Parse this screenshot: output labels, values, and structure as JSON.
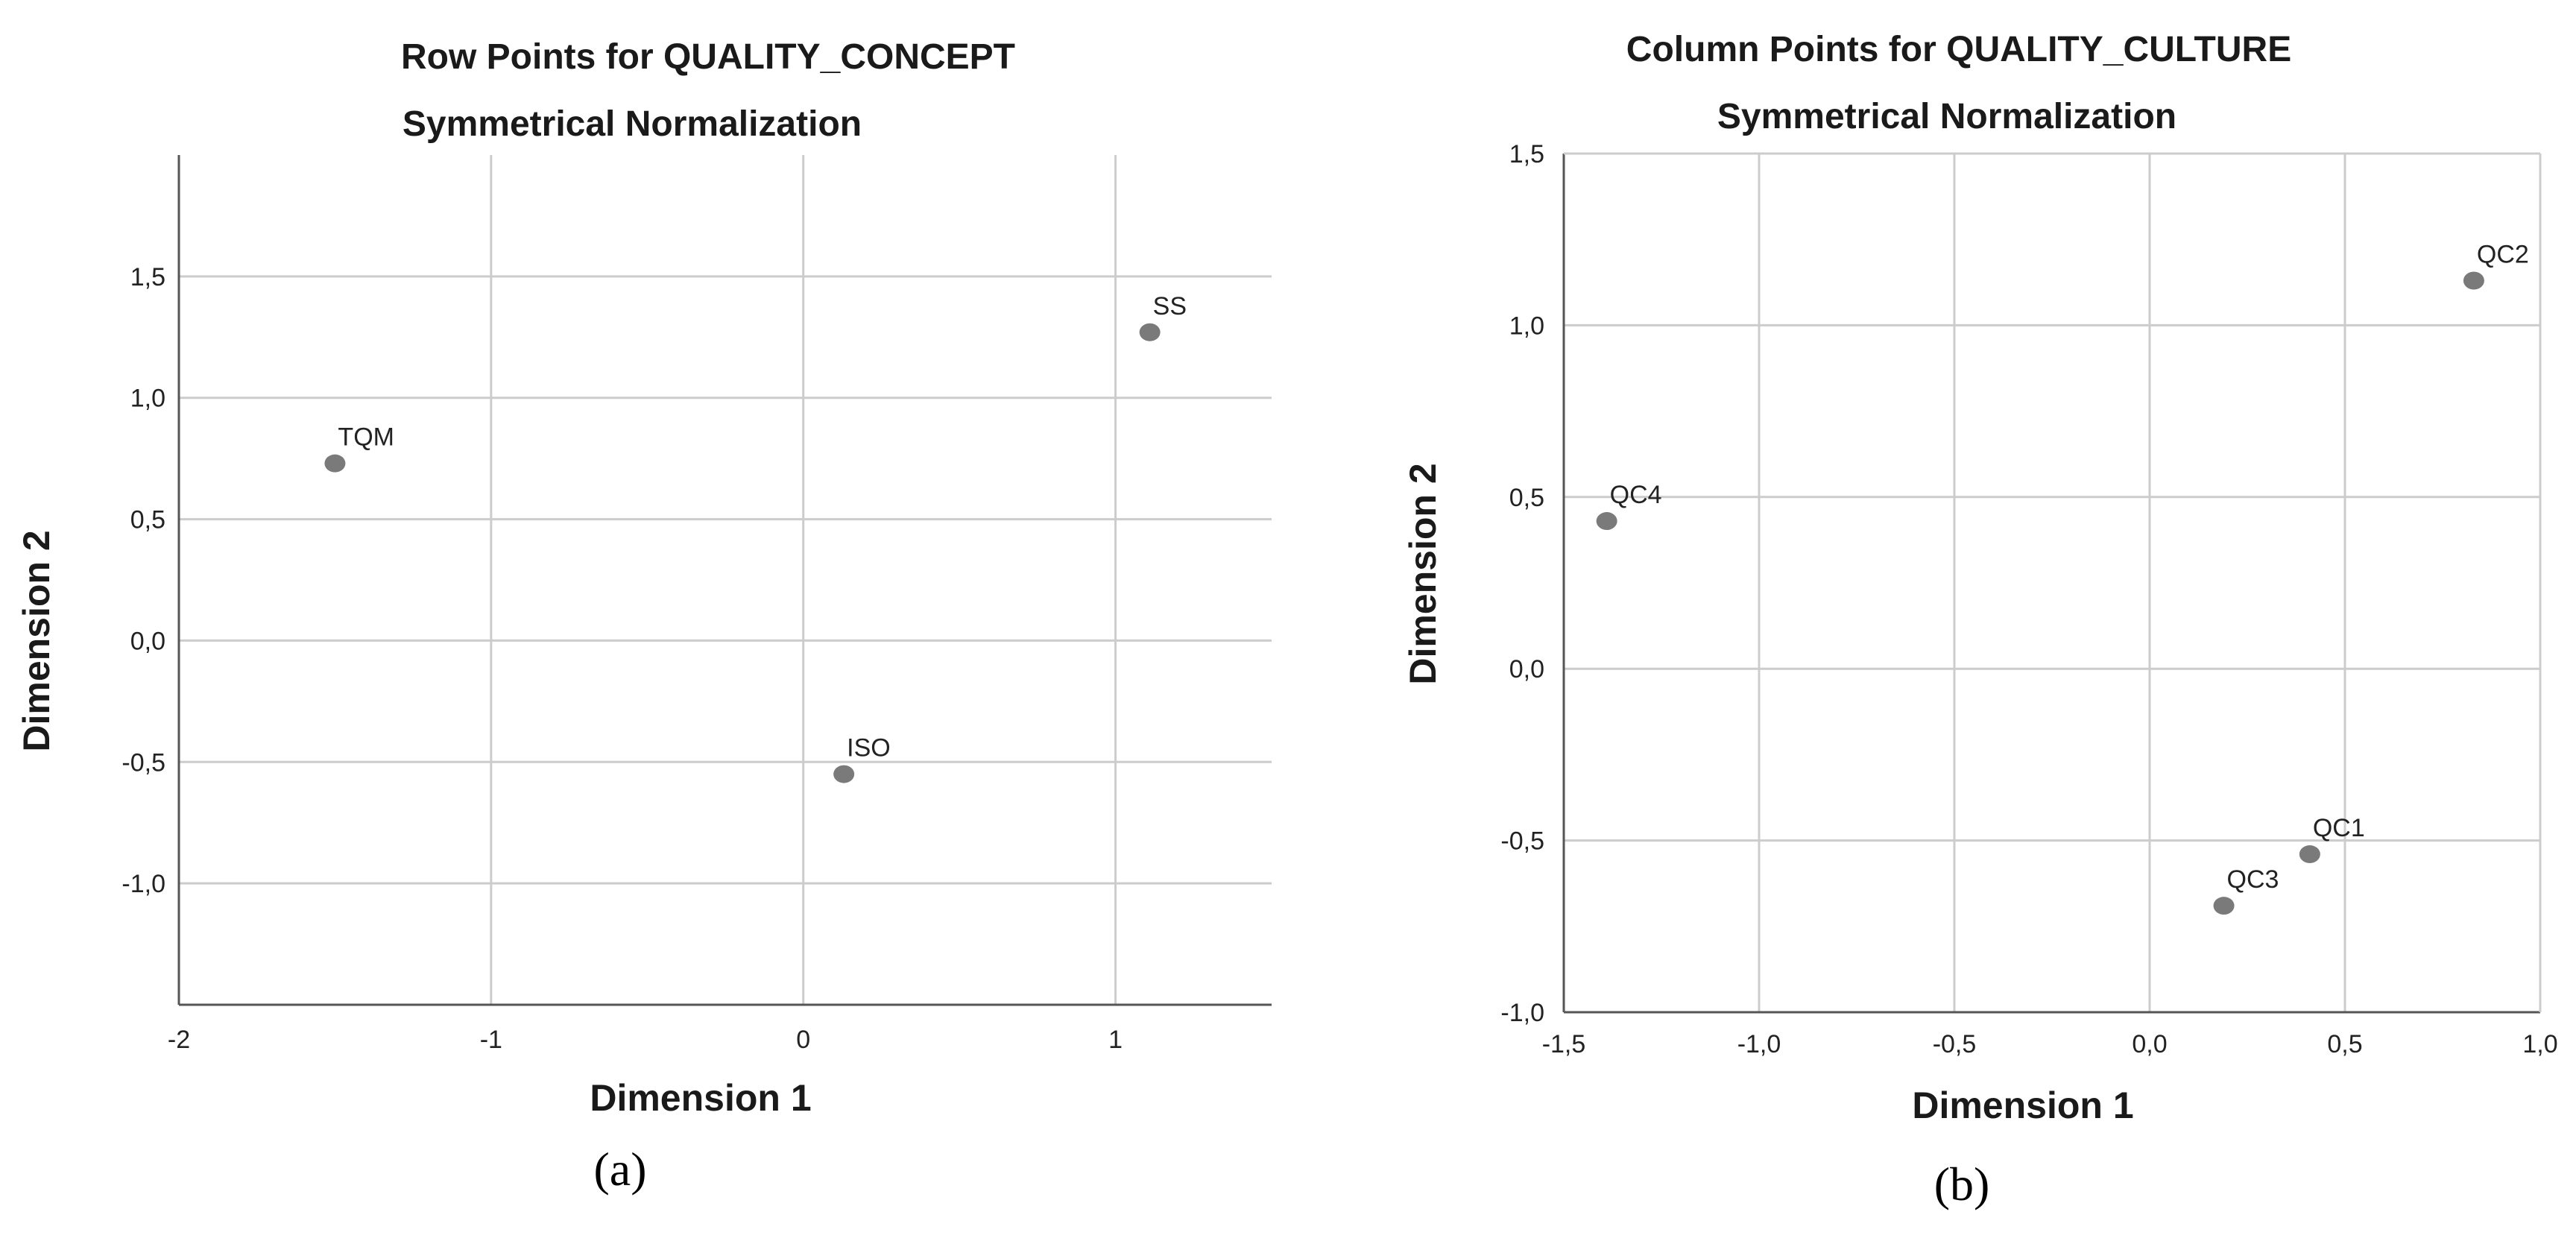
{
  "chart_data": [
    {
      "type": "scatter",
      "title": "Row Points for QUALITY_CONCEPT",
      "subtitle": "Symmetrical Normalization",
      "xlabel": "Dimension 1",
      "ylabel": "Dimension 2",
      "caption": "(a)",
      "xlim": [
        -2,
        1.5
      ],
      "ylim": [
        -1.5,
        2.0
      ],
      "xticks": [
        -2,
        -1,
        0,
        1
      ],
      "xtick_labels": [
        "-2",
        "-1",
        "0",
        "1"
      ],
      "yticks": [
        1.5,
        1.0,
        0.5,
        0.0,
        -0.5,
        -1.0
      ],
      "ytick_labels": [
        "1,5",
        "1,0",
        "0,5",
        "0,0",
        "-0,5",
        "-1,0"
      ],
      "grid": true,
      "points": [
        {
          "label": "TQM",
          "x": -1.5,
          "y": 0.73
        },
        {
          "label": "SS",
          "x": 1.11,
          "y": 1.27
        },
        {
          "label": "ISO",
          "x": 0.13,
          "y": -0.55
        }
      ],
      "colors": {
        "point": "#7a7a7a",
        "grid": "#cccccc",
        "axis": "#555555"
      }
    },
    {
      "type": "scatter",
      "title": "Column Points for QUALITY_CULTURE",
      "subtitle": "Symmetrical Normalization",
      "xlabel": "Dimension 1",
      "ylabel": "Dimension 2",
      "caption": "(b)",
      "xlim": [
        -1.5,
        1.0
      ],
      "ylim": [
        -1.0,
        1.5
      ],
      "xticks": [
        -1.5,
        -1.0,
        -0.5,
        0.0,
        0.5,
        1.0
      ],
      "xtick_labels": [
        "-1,5",
        "-1,0",
        "-0,5",
        "0,0",
        "0,5",
        "1,0"
      ],
      "yticks": [
        1.5,
        1.0,
        0.5,
        0.0,
        -0.5,
        -1.0
      ],
      "ytick_labels": [
        "1,5",
        "1,0",
        "0,5",
        "0,0",
        "-0,5",
        "-1,0"
      ],
      "grid": true,
      "points": [
        {
          "label": "QC2",
          "x": 0.83,
          "y": 1.13
        },
        {
          "label": "QC4",
          "x": -1.39,
          "y": 0.43
        },
        {
          "label": "QC1",
          "x": 0.41,
          "y": -0.54
        },
        {
          "label": "QC3",
          "x": 0.19,
          "y": -0.69
        }
      ],
      "colors": {
        "point": "#7a7a7a",
        "grid": "#cccccc",
        "axis": "#555555"
      }
    }
  ]
}
